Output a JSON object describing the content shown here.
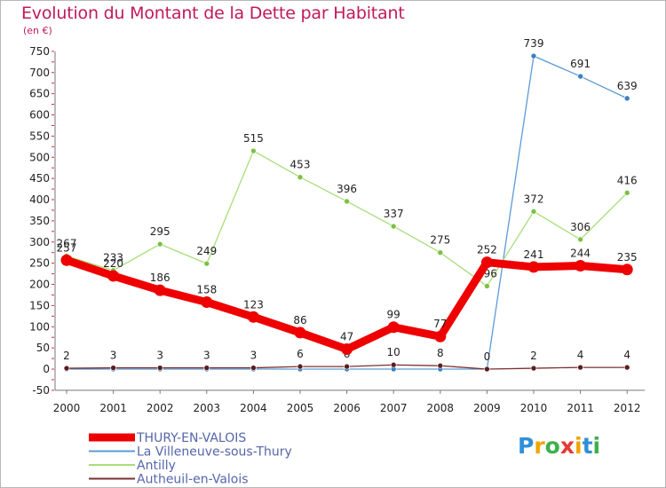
{
  "title": "Evolution du Montant de la Dette par Habitant",
  "unit": "(en €)",
  "logo": {
    "letters": [
      "P",
      "r",
      "o",
      "x",
      "i",
      "t",
      "i"
    ],
    "colors": [
      "#2f8fd8",
      "#f0a500",
      "#3db04b",
      "#e53935",
      "#f0a500",
      "#2f8fd8",
      "#3db04b"
    ]
  },
  "chart_data": {
    "type": "line",
    "x": [
      "2000",
      "2001",
      "2002",
      "2003",
      "2004",
      "2005",
      "2006",
      "2007",
      "2008",
      "2009",
      "2010",
      "2011",
      "2012"
    ],
    "ylim": [
      -50,
      750
    ],
    "yticks": [
      -50,
      0,
      50,
      100,
      150,
      200,
      250,
      300,
      350,
      400,
      450,
      500,
      550,
      600,
      650,
      700,
      750
    ],
    "grid": false,
    "legend_position": "bottom-left",
    "series": [
      {
        "name": "La Villeneuve-sous-Thury",
        "color": "#5b9bd5",
        "marker": "#3a7fc0",
        "values": [
          0,
          0,
          0,
          0,
          0,
          0,
          0,
          0,
          0,
          0,
          739,
          691,
          639
        ],
        "labels": [
          "",
          "",
          "",
          "",
          "",
          "",
          "",
          "",
          "",
          "",
          "739",
          "691",
          "639"
        ]
      },
      {
        "name": "Antilly",
        "color": "#a9de7a",
        "marker": "#7cc142",
        "values": [
          267,
          233,
          295,
          249,
          515,
          453,
          396,
          337,
          275,
          196,
          372,
          306,
          416
        ],
        "labels": [
          "267",
          "233",
          "295",
          "249",
          "515",
          "453",
          "396",
          "337",
          "275",
          "196",
          "372",
          "306",
          "416"
        ]
      },
      {
        "name": "Autheuil-en-Valois",
        "color": "#7a3030",
        "marker": "#5a1e1e",
        "values": [
          2,
          3,
          3,
          3,
          3,
          6,
          6,
          10,
          8,
          0,
          2,
          4,
          4
        ],
        "labels": [
          "2",
          "3",
          "3",
          "3",
          "3",
          "6",
          "6",
          "10",
          "8",
          "0",
          "2",
          "4",
          "4"
        ]
      },
      {
        "name": "THURY-EN-VALOIS",
        "color": "#ee0000",
        "marker": "#ee0000",
        "thick": true,
        "values": [
          257,
          220,
          186,
          158,
          123,
          86,
          47,
          99,
          77,
          252,
          241,
          244,
          235
        ],
        "labels": [
          "257",
          "220",
          "186",
          "158",
          "123",
          "86",
          "47",
          "99",
          "77",
          "252",
          "241",
          "244",
          "235"
        ]
      }
    ],
    "legend_order": [
      "THURY-EN-VALOIS",
      "La Villeneuve-sous-Thury",
      "Antilly",
      "Autheuil-en-Valois"
    ]
  }
}
